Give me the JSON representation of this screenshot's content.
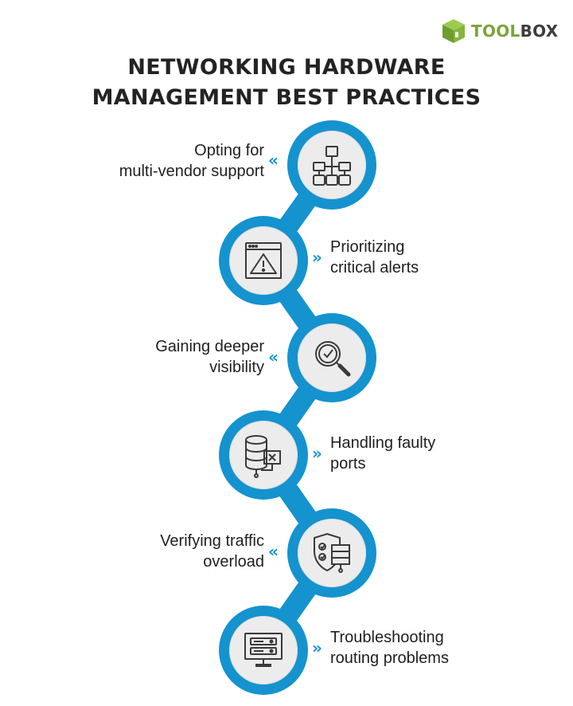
{
  "brand": {
    "tool": "TOOL",
    "box": "BOX"
  },
  "title": {
    "line1": "NETWORKING HARDWARE",
    "line2": "MANAGEMENT BEST PRACTICES"
  },
  "chevrons": {
    "left": "«",
    "right": "»"
  },
  "steps": [
    {
      "line1": "Opting for",
      "line2": "multi-vendor support",
      "icon": "hierarchy-icon"
    },
    {
      "line1": "Prioritizing",
      "line2": "critical alerts",
      "icon": "alert-window-icon"
    },
    {
      "line1": "Gaining deeper",
      "line2": "visibility",
      "icon": "magnifier-check-icon"
    },
    {
      "line1": "Handling faulty",
      "line2": "ports",
      "icon": "database-error-icon"
    },
    {
      "line1": "Verifying traffic",
      "line2": "overload",
      "icon": "shield-server-icon"
    },
    {
      "line1": "Troubleshooting",
      "line2": "routing problems",
      "icon": "monitor-server-icon"
    }
  ],
  "colors": {
    "accent": "#1493cf",
    "brand_green": "#7aa53a",
    "node_fill": "#ececec"
  }
}
